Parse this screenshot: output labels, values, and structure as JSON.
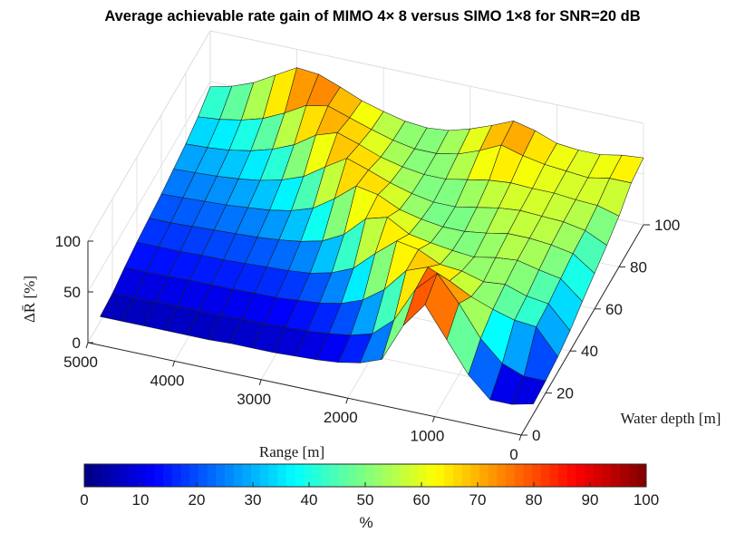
{
  "chart_data": {
    "type": "surface",
    "title": "Average achievable rate gain of MIMO 4× 8 versus SIMO 1×8 for SNR=20 dB",
    "xlabel": "Range [m]",
    "ylabel": "Water depth [m]",
    "zlabel": "ΔR̄ [%]",
    "colorbar_label": "%",
    "colormap": "jet",
    "x_ticks": [
      5000,
      4000,
      3000,
      2000,
      1000,
      0
    ],
    "y_ticks": [
      0,
      20,
      40,
      60,
      80,
      100
    ],
    "z_ticks": [
      0,
      50,
      100
    ],
    "colorbar_ticks": [
      0,
      10,
      20,
      30,
      40,
      50,
      60,
      70,
      80,
      90,
      100
    ],
    "xlim": [
      0,
      5000
    ],
    "ylim": [
      0,
      100
    ],
    "zlim": [
      0,
      100
    ],
    "clim": [
      0,
      100
    ],
    "range_m": [
      0,
      250,
      500,
      750,
      1000,
      1250,
      1500,
      1750,
      2000,
      2250,
      2500,
      2750,
      3000,
      3250,
      3500,
      3750,
      4000,
      4250,
      4500,
      4750,
      5000
    ],
    "depth_m": [
      10,
      20,
      30,
      40,
      50,
      60,
      70,
      80,
      90,
      100
    ],
    "gain_percent": [
      [
        10,
        5,
        5,
        25,
        55,
        85,
        60,
        22,
        14,
        10,
        8,
        7,
        6,
        6,
        6,
        5,
        5,
        5,
        5,
        5,
        5
      ],
      [
        12,
        12,
        20,
        40,
        70,
        95,
        75,
        40,
        22,
        16,
        13,
        11,
        10,
        9,
        9,
        8,
        8,
        8,
        8,
        7,
        7
      ],
      [
        15,
        40,
        42,
        48,
        56,
        67,
        76,
        68,
        45,
        30,
        22,
        18,
        16,
        14,
        14,
        13,
        13,
        13,
        12,
        12,
        12
      ],
      [
        20,
        42,
        45,
        52,
        50,
        56,
        58,
        68,
        72,
        55,
        36,
        27,
        22,
        20,
        19,
        18,
        17,
        17,
        16,
        16,
        16
      ],
      [
        28,
        46,
        50,
        55,
        53,
        49,
        51,
        54,
        58,
        70,
        64,
        44,
        33,
        28,
        25,
        23,
        22,
        21,
        20,
        19,
        19
      ],
      [
        35,
        50,
        54,
        56,
        56,
        52,
        49,
        49,
        52,
        57,
        67,
        71,
        54,
        40,
        33,
        29,
        27,
        25,
        24,
        23,
        22
      ],
      [
        42,
        52,
        56,
        57,
        58,
        56,
        52,
        48,
        48,
        52,
        58,
        66,
        73,
        60,
        46,
        38,
        33,
        30,
        28,
        27,
        26
      ],
      [
        50,
        56,
        57,
        59,
        59,
        60,
        58,
        54,
        50,
        50,
        53,
        58,
        66,
        73,
        66,
        52,
        43,
        37,
        33,
        31,
        30
      ],
      [
        62,
        62,
        58,
        60,
        62,
        66,
        72,
        62,
        54,
        50,
        50,
        54,
        60,
        67,
        74,
        70,
        58,
        48,
        42,
        38,
        36
      ],
      [
        66,
        64,
        60,
        60,
        62,
        70,
        75,
        66,
        58,
        52,
        50,
        52,
        57,
        63,
        72,
        80,
        82,
        70,
        58,
        50,
        45
      ]
    ]
  }
}
